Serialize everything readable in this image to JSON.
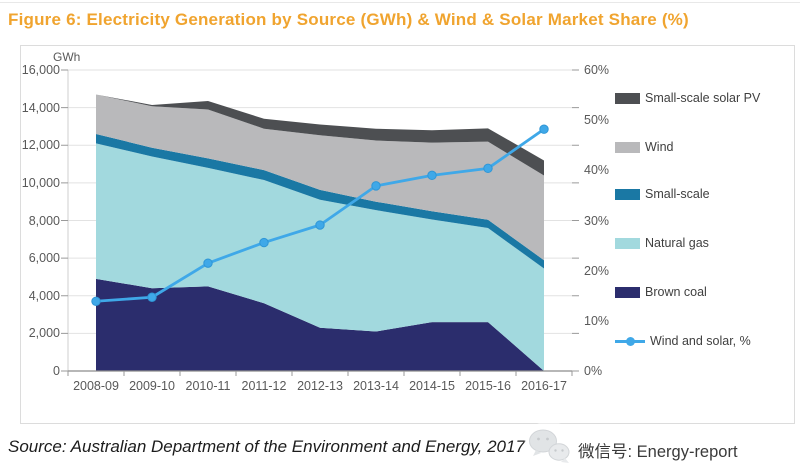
{
  "figure_title": "Figure 6: Electricity Generation by Source (GWh) & Wind & Solar Market Share (%)",
  "source_note": "Source: Australian Department of the Environment and Energy, 2017",
  "watermark": {
    "label": "微信号: Energy-report",
    "logo": "wechat-logo"
  },
  "colors": {
    "title": "#F0A42F",
    "brown_coal": "#2B2D6D",
    "natural_gas": "#A2D9DE",
    "small_scale": "#1A78A4",
    "wind": "#B9B9BB",
    "solar_pv": "#4D4F52",
    "wind_solar_line": "#3FA8E8",
    "axis_text": "#595959",
    "gridline": "#E2E2E2",
    "axis_line": "#8C8C8C"
  },
  "chart_data": {
    "type": "area",
    "stacked": true,
    "title": "Electricity Generation by Source (GWh) & Wind & Solar Market Share (%)",
    "grid": "horizontal-only",
    "legend_position": "right",
    "categories": [
      "2008-09",
      "2009-10",
      "2010-11",
      "2011-12",
      "2012-13",
      "2013-14",
      "2014-15",
      "2015-16",
      "2016-17"
    ],
    "series": [
      {
        "name": "Brown coal",
        "color": "#2B2D6D",
        "values": [
          4900,
          4400,
          4500,
          3600,
          2300,
          2100,
          2600,
          2600,
          0
        ]
      },
      {
        "name": "Natural gas",
        "color": "#A2D9DE",
        "values": [
          7200,
          7000,
          6300,
          6550,
          6800,
          6450,
          5450,
          5000,
          5450
        ]
      },
      {
        "name": "Small-scale",
        "color": "#1A78A4",
        "values": [
          500,
          470,
          500,
          530,
          530,
          450,
          440,
          440,
          440
        ]
      },
      {
        "name": "Wind",
        "color": "#B9B9BB",
        "values": [
          2100,
          2200,
          2600,
          2200,
          2900,
          3250,
          3650,
          4150,
          4500
        ]
      },
      {
        "name": "Small-scale solar PV",
        "color": "#4D4F52",
        "values": [
          0,
          70,
          450,
          530,
          570,
          630,
          660,
          710,
          800
        ]
      }
    ],
    "line_series": {
      "name": "Wind and solar, %",
      "color": "#3FA8E8",
      "axis": "right",
      "values": [
        13.9,
        14.7,
        21.5,
        25.6,
        29.1,
        36.9,
        39.0,
        40.4,
        48.2
      ]
    },
    "left_axis": {
      "label": "GWh",
      "min": 0,
      "max": 16000,
      "ticks": [
        "0",
        "2,000",
        "4,000",
        "6,000",
        "8,000",
        "10,000",
        "12,000",
        "14,000",
        "16,000"
      ]
    },
    "right_axis": {
      "min": 0,
      "max": 60,
      "ticks": [
        "0%",
        "10%",
        "20%",
        "30%",
        "40%",
        "50%",
        "60%"
      ]
    },
    "legend": [
      {
        "label": "Small-scale solar PV",
        "type": "box",
        "color": "#4D4F52"
      },
      {
        "label": "Wind",
        "type": "box",
        "color": "#B9B9BB"
      },
      {
        "label": "Small-scale",
        "type": "box",
        "color": "#1A78A4"
      },
      {
        "label": "Natural gas",
        "type": "box",
        "color": "#A2D9DE"
      },
      {
        "label": "Brown coal",
        "type": "box",
        "color": "#2B2D6D"
      },
      {
        "label": "Wind and solar, %",
        "type": "line",
        "color": "#3FA8E8"
      }
    ]
  }
}
